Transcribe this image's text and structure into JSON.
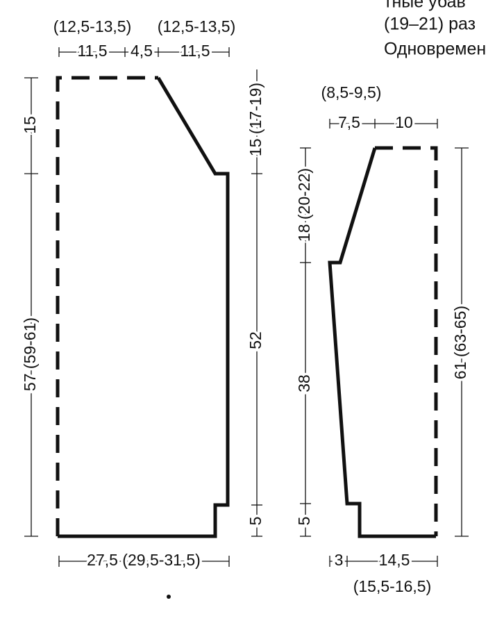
{
  "header": {
    "lines": [
      "тные убав",
      "(19–21) раз",
      "Одновремен"
    ]
  },
  "left_piece": {
    "top_alt_left": "(12,5-13,5)",
    "top_alt_right": "(12,5-13,5)",
    "top_left": "11,5",
    "top_middle": "4,5",
    "top_right": "11,5",
    "left_upper": "15",
    "left_lower": "57 (59-61)",
    "right_upper": "15 (17-19)",
    "right_middle": "52",
    "right_lower": "5",
    "bottom": "27,5 (29,5-31,5)"
  },
  "right_piece": {
    "top_alt": "(8,5-9,5)",
    "top_left": "7,5",
    "top_right": "10",
    "left_upper": "18 (20-22)",
    "left_middle": "38",
    "left_lower": "5",
    "right": "61 (63-65)",
    "bottom_left": "3",
    "bottom_right": "14,5",
    "bottom_alt": "(15,5-16,5)"
  }
}
